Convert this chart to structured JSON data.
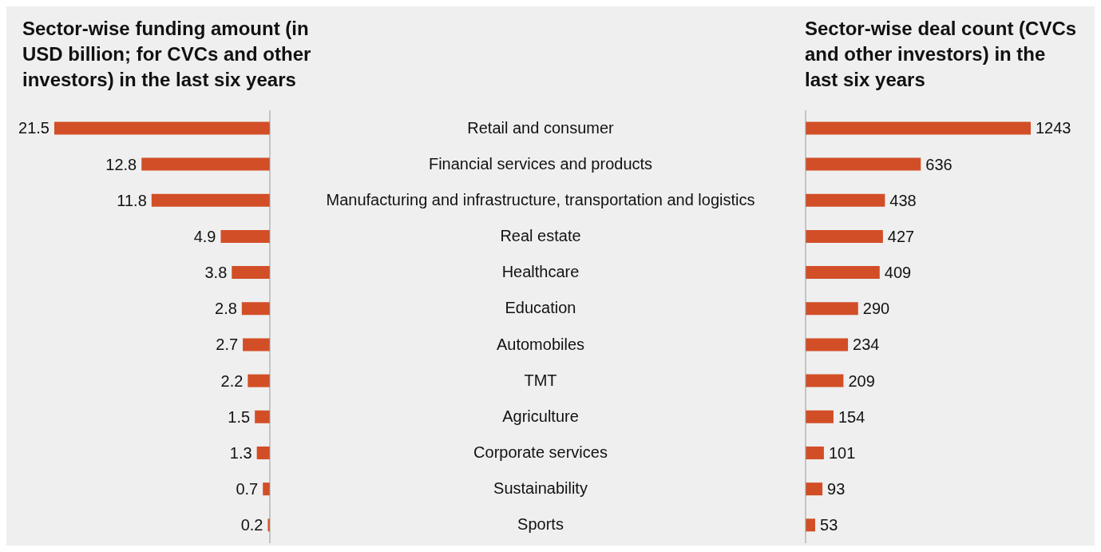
{
  "chart_data": [
    {
      "type": "bar",
      "orientation": "horizontal",
      "title": "Sector-wise funding amount (in USD billion; for CVCs and other investors) in the last six years",
      "categories": [
        "Retail and consumer",
        "Financial services and products",
        "Manufacturing and infrastructure, transportation and logistics",
        "Real estate",
        "Healthcare",
        "Education",
        "Automobiles",
        "TMT",
        "Agriculture",
        "Corporate services",
        "Sustainability",
        "Sports"
      ],
      "values": [
        21.5,
        12.8,
        11.8,
        4.9,
        3.8,
        2.8,
        2.7,
        2.2,
        1.5,
        1.3,
        0.7,
        0.2
      ],
      "color": "#d24e27",
      "data_labels": true,
      "tick_labels": "y"
    },
    {
      "type": "bar",
      "orientation": "horizontal",
      "title": "Sector-wise deal count (CVCs and other investors) in the last six years",
      "categories": [
        null,
        null,
        null,
        null,
        null,
        null,
        null,
        null,
        null,
        null,
        null,
        null
      ],
      "values": [
        1243,
        636,
        438,
        427,
        409,
        290,
        234,
        209,
        154,
        101,
        93,
        53
      ],
      "color": "#d24e27",
      "data_labels": true,
      "tick_labels": false
    }
  ]
}
